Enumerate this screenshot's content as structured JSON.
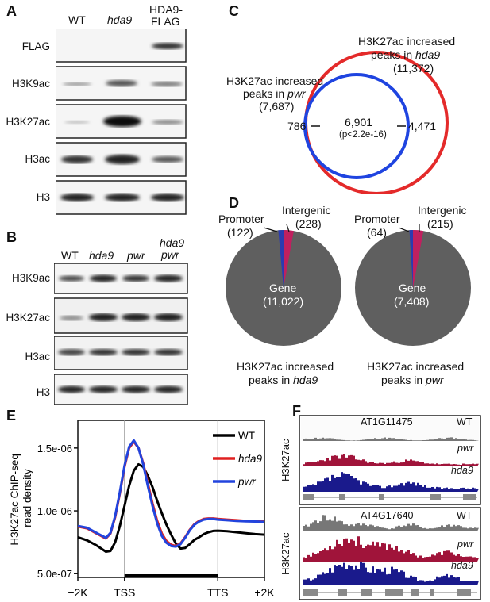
{
  "panel_a": {
    "label": "A",
    "columns": [
      "WT",
      "hda9",
      "HDA9-",
      "FLAG"
    ],
    "rows": [
      "FLAG",
      "H3K9ac",
      "H3K27ac",
      "H3ac",
      "H3"
    ]
  },
  "panel_b": {
    "label": "B",
    "columns": [
      "WT",
      "hda9",
      "pwr",
      "hda9",
      "pwr"
    ],
    "rows": [
      "H3K9ac",
      "H3K27ac",
      "H3ac",
      "H3"
    ]
  },
  "panel_c": {
    "label": "C",
    "hda9_title_1": "H3K27ac increased",
    "hda9_title_2": "peaks in ",
    "hda9_title_2_it": "hda9",
    "hda9_count": "(11,372)",
    "pwr_title_1": "H3K27ac increased",
    "pwr_title_2": "peaks in ",
    "pwr_title_2_it": "pwr",
    "pwr_count": "(7,687)",
    "pwr_only": "786",
    "overlap": "6,901",
    "pvalue": "(p<2.2e-16)",
    "hda9_only": "4,471",
    "colors": {
      "pwr": "#1f44e0",
      "hda9": "#e42a2a"
    }
  },
  "panel_d": {
    "label": "D",
    "left": {
      "promoter": "Promoter",
      "promoter_n": "(122)",
      "intergenic": "Intergenic",
      "intergenic_n": "(228)",
      "gene": "Gene",
      "gene_n": "(11,022)",
      "caption_1": "H3K27ac increased",
      "caption_2": "peaks in ",
      "caption_2_it": "hda9"
    },
    "right": {
      "promoter": "Promoter",
      "promoter_n": "(64)",
      "intergenic": "Intergenic",
      "intergenic_n": "(215)",
      "gene": "Gene",
      "gene_n": "(7,408)",
      "caption_1": "H3K27ac increased",
      "caption_2": "peaks in ",
      "caption_2_it": "pwr"
    },
    "colors": {
      "gene": "#5f5f5f",
      "promoter": "#2b3bb0",
      "intergenic": "#c0205f"
    }
  },
  "panel_e": {
    "label": "E"
  },
  "panel_f": {
    "label": "F",
    "tracks": [
      {
        "gene": "AT1G11475",
        "ylabel": "H3K27ac",
        "wt": "WT",
        "pwr": "pwr",
        "hda9": "hda9"
      },
      {
        "gene": "AT4G17640",
        "ylabel": "H3K27ac",
        "wt": "WT",
        "pwr": "pwr",
        "hda9": "hda9"
      }
    ]
  },
  "chart_data": {
    "type": "line",
    "ylabel": "H3K27ac ChIP-seq read density",
    "x_ticks": [
      "−2K",
      "TSS",
      "TTS",
      "+2K"
    ],
    "y_ticks": [
      "5.0e-07",
      "1.0e-06",
      "1.5e-06"
    ],
    "ylim": [
      4.7e-07,
      1.72e-06
    ],
    "x_positions": [
      0,
      0.1,
      0.2,
      0.3,
      0.35,
      0.4,
      0.45,
      0.5,
      0.55,
      0.6,
      0.65,
      0.7,
      0.75,
      0.8,
      0.85,
      0.9,
      0.95,
      1.0,
      1.05,
      1.1,
      1.15,
      1.2,
      1.25,
      1.3,
      1.35,
      1.4,
      1.45,
      1.5,
      1.6,
      1.7,
      1.8,
      1.9,
      2.0
    ],
    "series": [
      {
        "name": "WT",
        "color": "#000000",
        "values": [
          7.9e-07,
          7.65e-07,
          7.25e-07,
          6.75e-07,
          6.8e-07,
          7.5e-07,
          8.8e-07,
          1.04e-06,
          1.2e-06,
          1.32e-06,
          1.37e-06,
          1.35e-06,
          1.28e-06,
          1.19e-06,
          1.08e-06,
          9.8e-07,
          8.9e-07,
          8.1e-07,
          7.4e-07,
          7e-07,
          7.05e-07,
          7.35e-07,
          7.7e-07,
          7.9e-07,
          8.15e-07,
          8.3e-07,
          8.4e-07,
          8.42e-07,
          8.38e-07,
          8.3e-07,
          8.22e-07,
          8.15e-07,
          8.1e-07
        ]
      },
      {
        "name": "hda9",
        "color": "#e02020",
        "values": [
          8.75e-07,
          8.6e-07,
          8.2e-07,
          7.8e-07,
          8.2e-07,
          9.5e-07,
          1.14e-06,
          1.35e-06,
          1.5e-06,
          1.55e-06,
          1.5e-06,
          1.38e-06,
          1.22e-06,
          1.06e-06,
          9.2e-07,
          8.2e-07,
          7.6e-07,
          7.3e-07,
          7.2e-07,
          7.4e-07,
          7.9e-07,
          8.5e-07,
          8.95e-07,
          9.2e-07,
          9.35e-07,
          9.4e-07,
          9.4e-07,
          9.35e-07,
          9.3e-07,
          9.25e-07,
          9.2e-07,
          9.17e-07,
          9.15e-07
        ]
      },
      {
        "name": "pwr",
        "color": "#2244dd",
        "values": [
          8.8e-07,
          8.65e-07,
          8.25e-07,
          7.85e-07,
          8.25e-07,
          9.6e-07,
          1.15e-06,
          1.36e-06,
          1.51e-06,
          1.56e-06,
          1.5e-06,
          1.37e-06,
          1.2e-06,
          1.04e-06,
          9e-07,
          8e-07,
          7.45e-07,
          7.2e-07,
          7.15e-07,
          7.35e-07,
          7.85e-07,
          8.45e-07,
          8.9e-07,
          9.15e-07,
          9.3e-07,
          9.35e-07,
          9.35e-07,
          9.3e-07,
          9.25e-07,
          9.2e-07,
          9.17e-07,
          9.15e-07,
          9.12e-07
        ]
      }
    ],
    "legend": "top-right",
    "grid": false
  }
}
